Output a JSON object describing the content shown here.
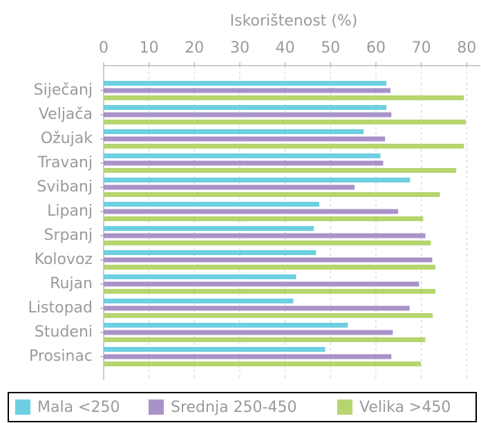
{
  "chart_data": {
    "type": "barh",
    "xlabel": "Iskorištenost (%)",
    "categories": [
      "Siječanj",
      "Veljača",
      "Ožujak",
      "Travanj",
      "Svibanj",
      "Lipanj",
      "Srpanj",
      "Kolovoz",
      "Rujan",
      "Listopad",
      "Studeni",
      "Prosinac"
    ],
    "series": [
      {
        "name": "Mala <250",
        "color": "#6dcfe1",
        "values": [
          62.3,
          62.3,
          57.3,
          61.0,
          67.5,
          47.5,
          46.3,
          46.8,
          42.4,
          41.8,
          53.8,
          48.8
        ]
      },
      {
        "name": "Srednja 250-450",
        "color": "#a893c9",
        "values": [
          63.2,
          63.4,
          62.0,
          61.6,
          55.3,
          64.9,
          70.9,
          72.4,
          69.5,
          67.4,
          63.7,
          63.4
        ]
      },
      {
        "name": "Velika >450",
        "color": "#b6d56f",
        "values": [
          79.4,
          79.8,
          79.4,
          77.7,
          74.1,
          70.4,
          72.1,
          73.1,
          73.1,
          72.5,
          70.9,
          69.9
        ]
      }
    ],
    "xlim": [
      0,
      83
    ],
    "xticks": [
      0,
      10,
      20,
      30,
      40,
      50,
      60,
      70,
      80
    ],
    "grid": true,
    "legend": "bottom"
  }
}
